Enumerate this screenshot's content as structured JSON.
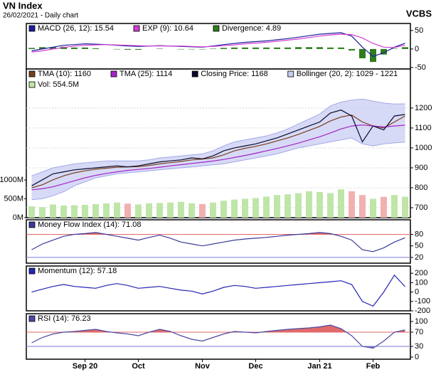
{
  "header": {
    "title": "VN Index",
    "subtitle": "26/02/2021 - Daily chart",
    "source": "VCBS"
  },
  "chart_data": [
    {
      "type": "line",
      "ylim": [
        -54,
        69
      ],
      "yticks": [
        50,
        0,
        -50
      ],
      "series": [
        {
          "name": "MACD (26, 12): 15.54",
          "color": "#1c1c9c",
          "values": [
            -5,
            0,
            5,
            10,
            12,
            14,
            13,
            12,
            10,
            8,
            7,
            8,
            9,
            8,
            7,
            6,
            5,
            8,
            12,
            15,
            18,
            20,
            22,
            25,
            28,
            32,
            36,
            40,
            42,
            44,
            35,
            5,
            -20,
            -10,
            5,
            15.54
          ]
        },
        {
          "name": "EXP (9): 10.64",
          "color": "#d23cd2",
          "values": [
            -8,
            -5,
            0,
            4,
            8,
            10,
            11,
            12,
            11,
            10,
            9,
            8,
            8,
            8,
            8,
            7,
            6,
            7,
            9,
            11,
            14,
            16,
            18,
            21,
            24,
            27,
            31,
            35,
            38,
            40,
            39,
            30,
            15,
            5,
            4,
            10.64
          ]
        },
        {
          "name": "Divergence: 4.89",
          "color": "#2e7d1e",
          "type": "bar",
          "values": [
            3,
            5,
            5,
            6,
            4,
            4,
            2,
            0,
            -1,
            -2,
            -2,
            0,
            1,
            0,
            -1,
            -1,
            -1,
            1,
            3,
            4,
            4,
            4,
            4,
            4,
            4,
            5,
            5,
            5,
            4,
            4,
            -4,
            -25,
            -35,
            -15,
            1,
            4.89
          ]
        }
      ]
    },
    {
      "type": "line",
      "ylim": [
        650,
        1396
      ],
      "yticks": [
        700,
        800,
        900,
        1000,
        1100,
        1200
      ],
      "grid": true,
      "y2lim": [
        0,
        3943
      ],
      "y2ticks": [
        {
          "value": 1000,
          "label": "1000M"
        },
        {
          "value": 500,
          "label": "500M"
        },
        {
          "value": 0,
          "label": "0M"
        }
      ],
      "series": [
        {
          "name": "TMA (10): 1160",
          "color": "#7a3e1e",
          "values": [
            800,
            815,
            840,
            860,
            875,
            885,
            893,
            898,
            903,
            905,
            906,
            912,
            920,
            926,
            932,
            940,
            944,
            950,
            965,
            985,
            998,
            1008,
            1020,
            1035,
            1050,
            1068,
            1088,
            1108,
            1135,
            1155,
            1165,
            1130,
            1110,
            1100,
            1130,
            1160
          ]
        },
        {
          "name": "TMA (25): 1114",
          "color": "#a424c8",
          "values": [
            790,
            795,
            805,
            820,
            835,
            850,
            862,
            872,
            880,
            887,
            892,
            897,
            903,
            910,
            916,
            922,
            928,
            934,
            942,
            952,
            962,
            973,
            985,
            997,
            1010,
            1024,
            1040,
            1056,
            1075,
            1095,
            1110,
            1115,
            1110,
            1105,
            1110,
            1114
          ]
        },
        {
          "name": "Closing Price: 1168",
          "color": "#0a0a2a",
          "values": [
            810,
            840,
            870,
            880,
            890,
            895,
            900,
            905,
            910,
            905,
            910,
            920,
            930,
            935,
            940,
            950,
            945,
            960,
            985,
            1000,
            1010,
            1020,
            1035,
            1050,
            1070,
            1090,
            1110,
            1130,
            1175,
            1190,
            1160,
            1030,
            1110,
            1090,
            1160,
            1168
          ]
        },
        {
          "name": "Bollinger (20, 2): 1029 - 1221",
          "color": "#c9cdf3",
          "type": "band",
          "upper": [
            860,
            880,
            900,
            910,
            920,
            925,
            930,
            935,
            935,
            935,
            935,
            940,
            950,
            955,
            960,
            965,
            970,
            985,
            1010,
            1030,
            1040,
            1050,
            1060,
            1075,
            1095,
            1120,
            1145,
            1170,
            1210,
            1230,
            1240,
            1245,
            1235,
            1225,
            1220,
            1221
          ],
          "lower": [
            740,
            745,
            760,
            780,
            810,
            830,
            850,
            860,
            870,
            875,
            880,
            885,
            890,
            895,
            900,
            905,
            910,
            915,
            920,
            930,
            940,
            950,
            960,
            970,
            985,
            1000,
            1010,
            1020,
            1030,
            1040,
            1050,
            1020,
            1010,
            1020,
            1025,
            1029
          ]
        },
        {
          "name": "Vol: 554.5M",
          "color": "#bfe6a8",
          "down_color": "#f2b0b0",
          "type": "bar",
          "axis": "y2",
          "values": [
            300,
            280,
            350,
            320,
            330,
            340,
            360,
            380,
            400,
            370,
            350,
            380,
            390,
            400,
            420,
            380,
            360,
            400,
            450,
            480,
            500,
            520,
            560,
            600,
            620,
            650,
            700,
            680,
            650,
            750,
            700,
            600,
            500,
            550,
            600,
            554.5
          ]
        }
      ]
    },
    {
      "type": "area",
      "ylim": [
        5,
        118
      ],
      "yticks": [
        80,
        50,
        20
      ],
      "overbought": 80,
      "oversold": 20,
      "overbought_color": "#e06a6a",
      "oversold_color": "#7a7ad8",
      "series": [
        {
          "name": "Money Flow Index (14): 71.08",
          "color": "#3a3a9a",
          "values": [
            40,
            55,
            65,
            75,
            80,
            82,
            85,
            80,
            75,
            70,
            65,
            72,
            78,
            70,
            60,
            55,
            50,
            55,
            60,
            65,
            68,
            70,
            72,
            75,
            78,
            80,
            82,
            85,
            82,
            75,
            65,
            40,
            35,
            45,
            60,
            71.08
          ]
        }
      ]
    },
    {
      "type": "line",
      "ylim": [
        -200,
        277
      ],
      "yticks": [
        200,
        100,
        0,
        -100,
        -200
      ],
      "series": [
        {
          "name": "Momentum (12): 57.18",
          "color": "#2424b4",
          "values": [
            0,
            30,
            60,
            80,
            60,
            50,
            40,
            70,
            90,
            70,
            40,
            50,
            60,
            40,
            20,
            10,
            -20,
            10,
            50,
            70,
            60,
            40,
            50,
            60,
            70,
            80,
            90,
            100,
            110,
            120,
            80,
            -100,
            -150,
            0,
            180,
            57.18
          ]
        }
      ]
    },
    {
      "type": "area",
      "ylim": [
        -6,
        122
      ],
      "yticks": [
        100,
        70,
        30,
        0
      ],
      "overbought": 70,
      "oversold": 30,
      "overbought_color": "#e06a6a",
      "oversold_color": "#7a7ad8",
      "categories": [
        null,
        null,
        null,
        null,
        null,
        "Sep 20",
        null,
        null,
        null,
        null,
        "Oct",
        null,
        null,
        null,
        null,
        null,
        "Nov",
        null,
        null,
        null,
        null,
        "Dec",
        null,
        null,
        null,
        null,
        null,
        "Jan 21",
        null,
        null,
        null,
        null,
        "Feb",
        null,
        null,
        null
      ],
      "series": [
        {
          "name": "RSI (14): 76.23",
          "color": "#4a4aa4",
          "values": [
            40,
            55,
            65,
            70,
            72,
            75,
            78,
            72,
            68,
            65,
            60,
            70,
            78,
            72,
            60,
            50,
            45,
            55,
            65,
            72,
            70,
            68,
            72,
            75,
            78,
            80,
            82,
            85,
            90,
            80,
            60,
            30,
            25,
            45,
            70,
            76.23
          ]
        }
      ]
    }
  ]
}
